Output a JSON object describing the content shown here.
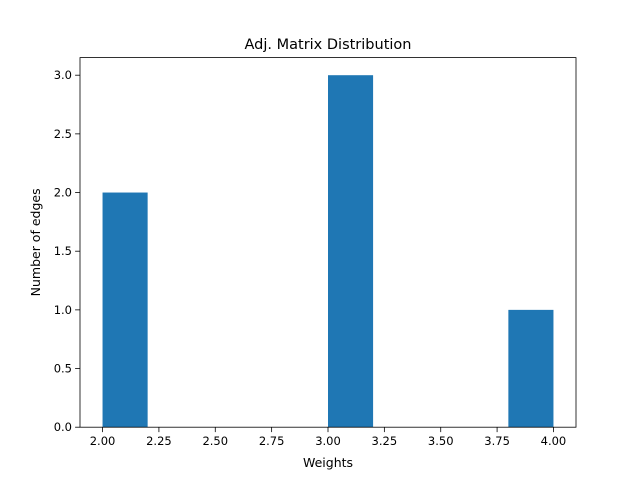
{
  "chart_data": {
    "type": "bar",
    "subtype": "histogram",
    "title": "Adj. Matrix Distribution",
    "xlabel": "Weights",
    "ylabel": "Number of edges",
    "xlim": [
      1.9,
      4.1
    ],
    "ylim": [
      0,
      3.15
    ],
    "xticks": [
      2.0,
      2.25,
      2.5,
      2.75,
      3.0,
      3.25,
      3.5,
      3.75,
      4.0
    ],
    "xtick_labels": [
      "2.00",
      "2.25",
      "2.50",
      "2.75",
      "3.00",
      "3.25",
      "3.50",
      "3.75",
      "4.00"
    ],
    "yticks": [
      0.0,
      0.5,
      1.0,
      1.5,
      2.0,
      2.5,
      3.0
    ],
    "ytick_labels": [
      "0.0",
      "0.5",
      "1.0",
      "1.5",
      "2.0",
      "2.5",
      "3.0"
    ],
    "bins": [
      {
        "start": 2.0,
        "end": 2.2,
        "count": 2
      },
      {
        "start": 2.2,
        "end": 2.4,
        "count": 0
      },
      {
        "start": 2.4,
        "end": 2.6,
        "count": 0
      },
      {
        "start": 2.6,
        "end": 2.8,
        "count": 0
      },
      {
        "start": 2.8,
        "end": 3.0,
        "count": 0
      },
      {
        "start": 3.0,
        "end": 3.2,
        "count": 3
      },
      {
        "start": 3.2,
        "end": 3.4,
        "count": 0
      },
      {
        "start": 3.4,
        "end": 3.6,
        "count": 0
      },
      {
        "start": 3.6,
        "end": 3.8,
        "count": 0
      },
      {
        "start": 3.8,
        "end": 4.0,
        "count": 1
      }
    ],
    "grid": false,
    "legend": "none",
    "bar_color": "#1f77b4"
  }
}
